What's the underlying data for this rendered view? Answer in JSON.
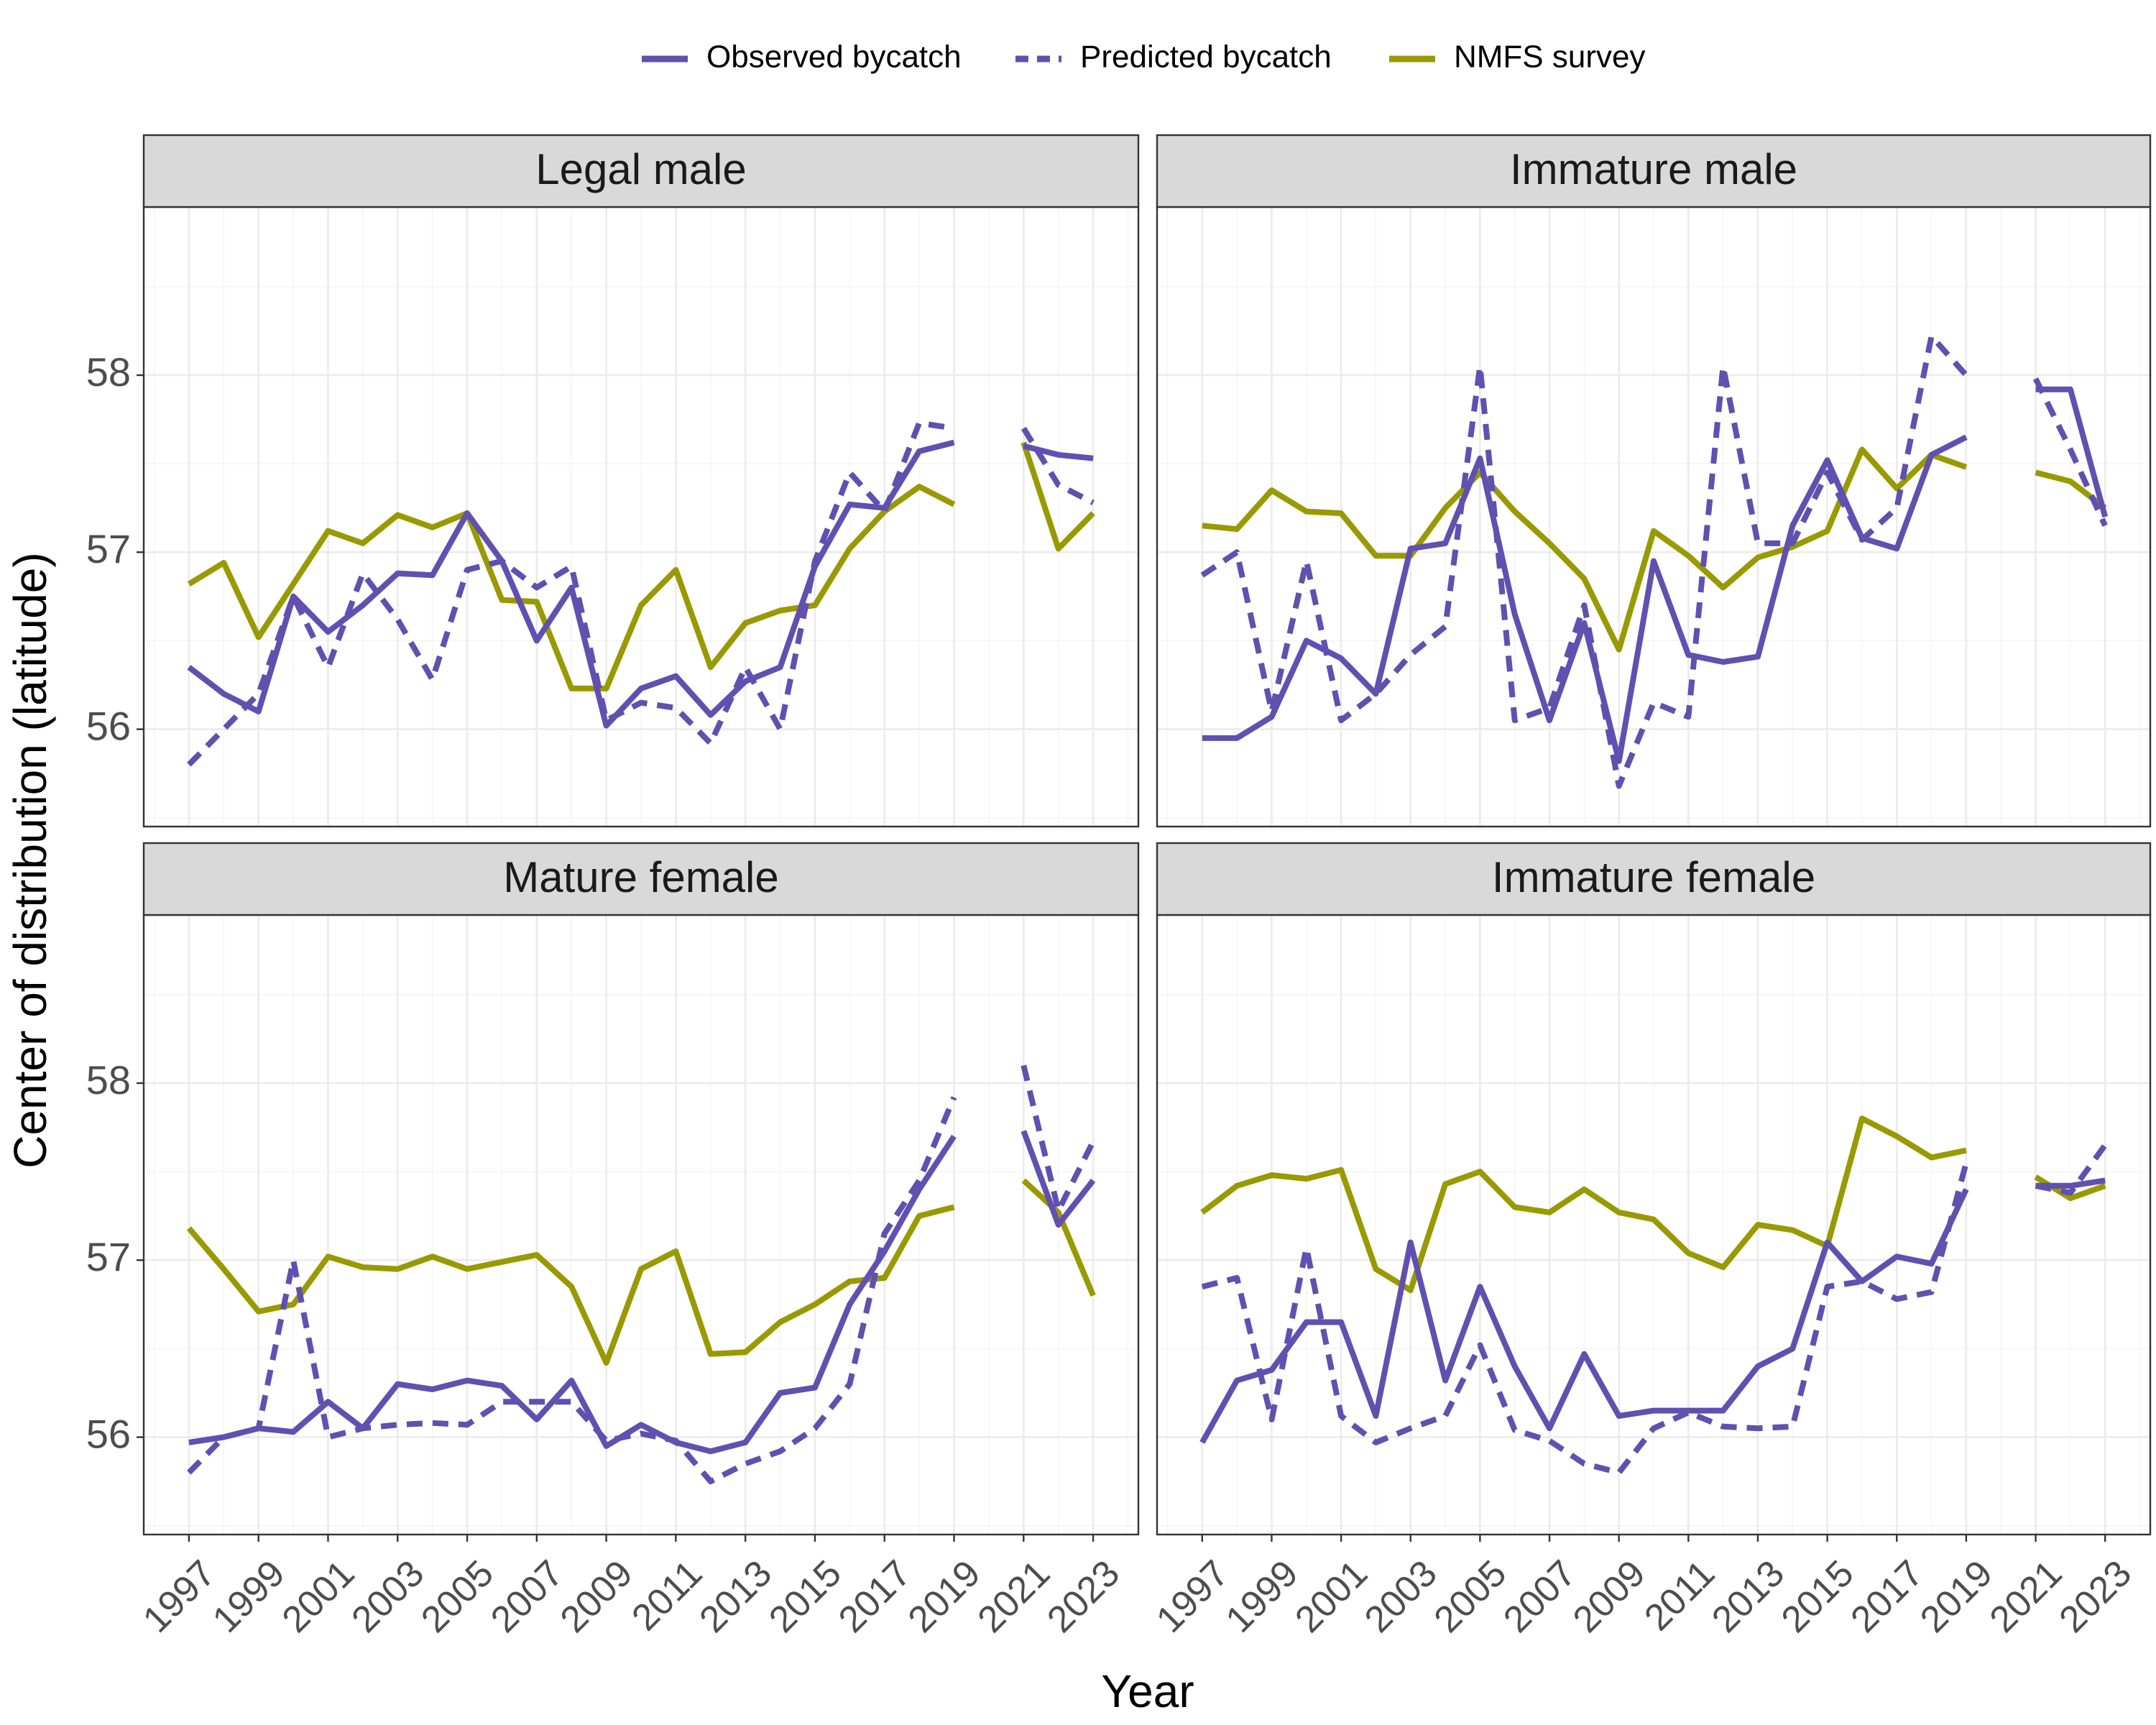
{
  "chart_data": {
    "type": "line",
    "xlabel": "Year",
    "ylabel": "Center of distribution (latitude)",
    "legend_position": "top",
    "grid": true,
    "ylim": [
      55.45,
      58.95
    ],
    "xlim": [
      1995.7,
      2024.3
    ],
    "x_ticks": [
      1997,
      1999,
      2001,
      2003,
      2005,
      2007,
      2009,
      2011,
      2013,
      2015,
      2017,
      2019,
      2021,
      2023
    ],
    "y_ticks": [
      56,
      57,
      58
    ],
    "legend": [
      {
        "key": "observed",
        "label": "Observed bycatch",
        "color": "#6050b0",
        "dash": "solid"
      },
      {
        "key": "predicted",
        "label": "Predicted bycatch",
        "color": "#6050b0",
        "dash": "dashed"
      },
      {
        "key": "survey",
        "label": "NMFS survey",
        "color": "#999900",
        "dash": "solid"
      }
    ],
    "panels": [
      {
        "title": "Legal male",
        "x": [
          1997,
          1998,
          1999,
          2000,
          2001,
          2002,
          2003,
          2004,
          2005,
          2006,
          2007,
          2008,
          2009,
          2010,
          2011,
          2012,
          2013,
          2014,
          2015,
          2016,
          2017,
          2018,
          2019,
          2020,
          2021,
          2022,
          2023
        ],
        "series": {
          "observed": [
            56.35,
            56.2,
            56.1,
            56.75,
            56.55,
            56.7,
            56.88,
            56.87,
            57.22,
            56.95,
            56.5,
            56.8,
            56.02,
            56.23,
            56.3,
            56.08,
            56.27,
            56.35,
            56.92,
            57.27,
            57.25,
            57.57,
            57.62,
            null,
            57.6,
            57.55,
            57.53
          ],
          "predicted": [
            55.8,
            56.0,
            56.2,
            56.75,
            56.35,
            56.88,
            56.62,
            56.28,
            56.9,
            56.95,
            56.8,
            56.92,
            56.05,
            56.15,
            56.12,
            55.92,
            56.35,
            56.0,
            56.95,
            57.45,
            57.23,
            57.73,
            57.7,
            null,
            57.7,
            57.38,
            57.28
          ],
          "survey": [
            56.82,
            56.94,
            56.52,
            56.82,
            57.12,
            57.05,
            57.21,
            57.14,
            57.22,
            56.73,
            56.72,
            56.23,
            56.23,
            56.7,
            56.9,
            56.35,
            56.6,
            56.67,
            56.7,
            57.02,
            57.23,
            57.37,
            57.27,
            null,
            57.62,
            57.02,
            57.22
          ]
        }
      },
      {
        "title": "Immature male",
        "x": [
          1997,
          1998,
          1999,
          2000,
          2001,
          2002,
          2003,
          2004,
          2005,
          2006,
          2007,
          2008,
          2009,
          2010,
          2011,
          2012,
          2013,
          2014,
          2015,
          2016,
          2017,
          2018,
          2019,
          2020,
          2021,
          2022,
          2023
        ],
        "series": {
          "observed": [
            55.95,
            55.95,
            56.07,
            56.5,
            56.4,
            56.2,
            57.02,
            57.05,
            57.53,
            56.65,
            56.05,
            56.6,
            55.82,
            56.95,
            56.42,
            56.38,
            56.41,
            57.15,
            57.52,
            57.08,
            57.02,
            57.55,
            57.65,
            null,
            57.92,
            57.92,
            57.2
          ],
          "predicted": [
            56.87,
            57.0,
            56.1,
            56.95,
            56.05,
            56.2,
            56.42,
            56.58,
            58.05,
            56.05,
            56.12,
            56.7,
            55.68,
            56.15,
            56.07,
            58.05,
            57.05,
            57.05,
            57.45,
            57.07,
            57.25,
            58.22,
            58.0,
            null,
            57.98,
            57.58,
            57.15
          ],
          "survey": [
            57.15,
            57.13,
            57.35,
            57.23,
            57.22,
            56.98,
            56.98,
            57.25,
            57.45,
            57.23,
            57.05,
            56.85,
            56.45,
            57.12,
            56.98,
            56.8,
            56.97,
            57.03,
            57.12,
            57.58,
            57.36,
            57.55,
            57.48,
            null,
            57.45,
            57.4,
            57.25
          ]
        }
      },
      {
        "title": "Mature female",
        "x": [
          1997,
          1998,
          1999,
          2000,
          2001,
          2002,
          2003,
          2004,
          2005,
          2006,
          2007,
          2008,
          2009,
          2010,
          2011,
          2012,
          2013,
          2014,
          2015,
          2016,
          2017,
          2018,
          2019,
          2020,
          2021,
          2022,
          2023
        ],
        "series": {
          "observed": [
            55.97,
            56.0,
            56.05,
            56.03,
            56.2,
            56.05,
            56.3,
            56.27,
            56.32,
            56.29,
            56.1,
            56.32,
            55.95,
            56.07,
            55.97,
            55.92,
            55.97,
            56.25,
            56.28,
            56.75,
            57.05,
            57.4,
            57.7,
            null,
            57.73,
            57.2,
            57.45
          ],
          "predicted": [
            55.8,
            56.0,
            56.05,
            57.0,
            56.0,
            56.05,
            56.07,
            56.08,
            56.07,
            56.2,
            56.2,
            56.2,
            55.98,
            56.02,
            55.98,
            55.75,
            55.85,
            55.92,
            56.05,
            56.3,
            57.15,
            57.45,
            57.92,
            null,
            58.1,
            57.28,
            57.67
          ],
          "survey": [
            57.18,
            56.95,
            56.71,
            56.75,
            57.02,
            56.96,
            56.95,
            57.02,
            56.95,
            56.99,
            57.03,
            56.85,
            56.42,
            56.95,
            57.05,
            56.47,
            56.48,
            56.65,
            56.75,
            56.88,
            56.9,
            57.25,
            57.3,
            null,
            57.45,
            57.27,
            56.8
          ]
        }
      },
      {
        "title": "Immature female",
        "x": [
          1997,
          1998,
          1999,
          2000,
          2001,
          2002,
          2003,
          2004,
          2005,
          2006,
          2007,
          2008,
          2009,
          2010,
          2011,
          2012,
          2013,
          2014,
          2015,
          2016,
          2017,
          2018,
          2019,
          2020,
          2021,
          2022,
          2023
        ],
        "series": {
          "observed": [
            55.97,
            56.32,
            56.38,
            56.65,
            56.65,
            56.12,
            57.1,
            56.32,
            56.85,
            56.4,
            56.05,
            56.47,
            56.12,
            56.15,
            56.15,
            56.15,
            56.4,
            56.5,
            57.1,
            56.88,
            57.02,
            56.98,
            57.4,
            null,
            57.42,
            57.42,
            57.45
          ],
          "predicted": [
            56.85,
            56.9,
            56.1,
            57.07,
            56.12,
            55.97,
            56.05,
            56.12,
            56.52,
            56.04,
            55.98,
            55.85,
            55.8,
            56.05,
            56.14,
            56.06,
            56.05,
            56.06,
            56.85,
            56.88,
            56.78,
            56.82,
            57.55,
            null,
            57.42,
            57.38,
            57.65
          ],
          "survey": [
            57.27,
            57.42,
            57.48,
            57.46,
            57.51,
            56.95,
            56.83,
            57.43,
            57.5,
            57.3,
            57.27,
            57.4,
            57.27,
            57.23,
            57.04,
            56.96,
            57.2,
            57.17,
            57.08,
            57.8,
            57.7,
            57.58,
            57.62,
            null,
            57.47,
            57.35,
            57.42
          ]
        }
      }
    ]
  }
}
